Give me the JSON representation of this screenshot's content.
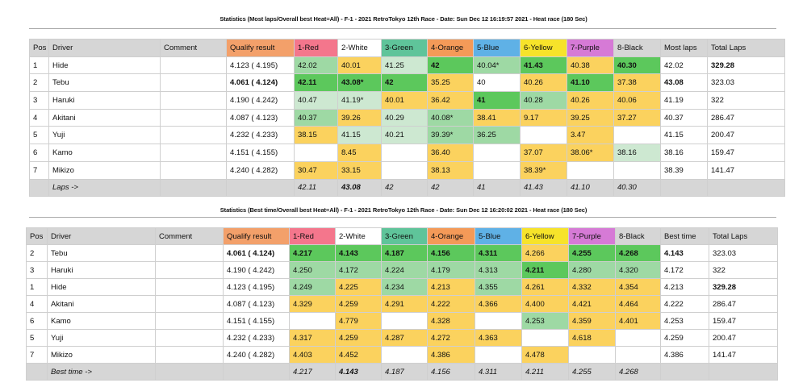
{
  "table1": {
    "title": "Statistics (Most laps/Overall best Heat=All) - F-1 - 2021 RetroTokyo 12th Race - Date: Sun Dec 12 16:19:57 2021 - Heat race (180 Sec)",
    "headers": [
      "Pos",
      "Driver",
      "Comment",
      "Qualify result",
      "1-Red",
      "2-White",
      "3-Green",
      "4-Orange",
      "5-Blue",
      "6-Yellow",
      "7-Purple",
      "8-Black",
      "Most laps",
      "Total Laps"
    ],
    "rows": [
      {
        "pos": "1",
        "driver": "Hide",
        "comment": "",
        "qualify": "4.123 ( 4.195)",
        "lanes": [
          "42.02",
          "40.01",
          "41.25",
          "42",
          "40.04*",
          "41.43",
          "40.38",
          "40.30"
        ],
        "best": "42.02",
        "total": "329.28"
      },
      {
        "pos": "2",
        "driver": "Tebu",
        "comment": "",
        "qualify": "4.061 ( 4.124)",
        "lanes": [
          "42.11",
          "43.08*",
          "42",
          "35.25",
          "40",
          "40.26",
          "41.10",
          "37.38"
        ],
        "best": "43.08",
        "total": "323.03"
      },
      {
        "pos": "3",
        "driver": "Haruki",
        "comment": "",
        "qualify": "4.190 ( 4.242)",
        "lanes": [
          "40.47",
          "41.19*",
          "40.01",
          "36.42",
          "41",
          "40.28",
          "40.26",
          "40.06"
        ],
        "best": "41.19",
        "total": "322"
      },
      {
        "pos": "4",
        "driver": "Akitani",
        "comment": "",
        "qualify": "4.087 ( 4.123)",
        "lanes": [
          "40.37",
          "39.26",
          "40.29",
          "40.08*",
          "38.41",
          "9.17",
          "39.25",
          "37.27"
        ],
        "best": "40.37",
        "total": "286.47"
      },
      {
        "pos": "5",
        "driver": "Yuji",
        "comment": "",
        "qualify": "4.232 ( 4.233)",
        "lanes": [
          "38.15",
          "41.15",
          "40.21",
          "39.39*",
          "36.25",
          "",
          "3.47",
          ""
        ],
        "best": "41.15",
        "total": "200.47"
      },
      {
        "pos": "6",
        "driver": "Kamo",
        "comment": "",
        "qualify": "4.151 ( 4.155)",
        "lanes": [
          "",
          "8.45",
          "",
          "36.40",
          "",
          "37.07",
          "38.06*",
          "38.16"
        ],
        "best": "38.16",
        "total": "159.47"
      },
      {
        "pos": "7",
        "driver": "Mikizo",
        "comment": "",
        "qualify": "4.240 ( 4.282)",
        "lanes": [
          "30.47",
          "33.15",
          "",
          "38.13",
          "",
          "38.39*",
          "",
          ""
        ],
        "best": "38.39",
        "total": "141.47"
      }
    ],
    "total_label": "Laps ->",
    "totals": [
      "42.11",
      "43.08",
      "42",
      "42",
      "41",
      "41.43",
      "41.10",
      "40.30"
    ]
  },
  "table2": {
    "title": "Statistics (Best time/Overall best Heat=All) - F-1 - 2021 RetroTokyo 12th Race - Date: Sun Dec 12 16:20:02 2021 - Heat race (180 Sec)",
    "headers": [
      "Pos",
      "Driver",
      "Comment",
      "Qualify result",
      "1-Red",
      "2-White",
      "3-Green",
      "4-Orange",
      "5-Blue",
      "6-Yellow",
      "7-Purple",
      "8-Black",
      "Best time",
      "Total Laps"
    ],
    "rows": [
      {
        "pos": "2",
        "driver": "Tebu",
        "comment": "",
        "qualify": "4.061 ( 4.124)",
        "lanes": [
          "4.217",
          "4.143",
          "4.187",
          "4.156",
          "4.311",
          "4.266",
          "4.255",
          "4.268"
        ],
        "best": "4.143",
        "total": "323.03"
      },
      {
        "pos": "3",
        "driver": "Haruki",
        "comment": "",
        "qualify": "4.190 ( 4.242)",
        "lanes": [
          "4.250",
          "4.172",
          "4.224",
          "4.179",
          "4.313",
          "4.211",
          "4.280",
          "4.320"
        ],
        "best": "4.172",
        "total": "322"
      },
      {
        "pos": "1",
        "driver": "Hide",
        "comment": "",
        "qualify": "4.123 ( 4.195)",
        "lanes": [
          "4.249",
          "4.225",
          "4.234",
          "4.213",
          "4.355",
          "4.261",
          "4.332",
          "4.354"
        ],
        "best": "4.213",
        "total": "329.28"
      },
      {
        "pos": "4",
        "driver": "Akitani",
        "comment": "",
        "qualify": "4.087 ( 4.123)",
        "lanes": [
          "4.329",
          "4.259",
          "4.291",
          "4.222",
          "4.366",
          "4.400",
          "4.421",
          "4.464"
        ],
        "best": "4.222",
        "total": "286.47"
      },
      {
        "pos": "6",
        "driver": "Kamo",
        "comment": "",
        "qualify": "4.151 ( 4.155)",
        "lanes": [
          "",
          "4.779",
          "",
          "4.328",
          "",
          "4.253",
          "4.359",
          "4.401"
        ],
        "best": "4.253",
        "total": "159.47"
      },
      {
        "pos": "5",
        "driver": "Yuji",
        "comment": "",
        "qualify": "4.232 ( 4.233)",
        "lanes": [
          "4.317",
          "4.259",
          "4.287",
          "4.272",
          "4.363",
          "",
          "4.618",
          ""
        ],
        "best": "4.259",
        "total": "200.47"
      },
      {
        "pos": "7",
        "driver": "Mikizo",
        "comment": "",
        "qualify": "4.240 ( 4.282)",
        "lanes": [
          "4.403",
          "4.452",
          "",
          "4.386",
          "",
          "4.478",
          "",
          ""
        ],
        "best": "4.386",
        "total": "141.47"
      }
    ],
    "total_label": "Best time ->",
    "totals": [
      "4.217",
      "4.143",
      "4.187",
      "4.156",
      "4.311",
      "4.211",
      "4.255",
      "4.268"
    ]
  }
}
